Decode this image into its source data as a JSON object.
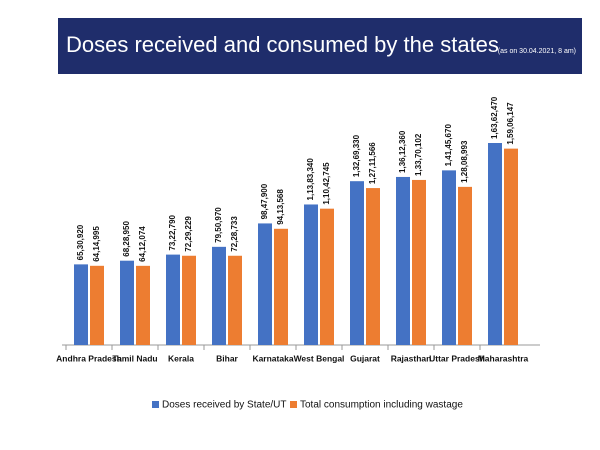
{
  "chart_data": {
    "type": "bar",
    "title": "Doses received and consumed by the states",
    "subtitle": "(as on 30.04.2021, 8 am)",
    "categories": [
      "Andhra Pradesh",
      "Tamil Nadu",
      "Kerala",
      "Bihar",
      "Karnataka",
      "West Bengal",
      "Gujarat",
      "Rajasthan",
      "Uttar Pradesh",
      "Maharashtra"
    ],
    "series": [
      {
        "name": "Doses received by State/UT",
        "color": "#4472c4",
        "values": [
          6530920,
          6828950,
          7322790,
          7950970,
          9847900,
          11383340,
          13269330,
          13612360,
          14145670,
          16362470
        ],
        "value_labels": [
          "65,30,920",
          "68,28,950",
          "73,22,790",
          "79,50,970",
          "98,47,900",
          "1,13,83,340",
          "1,32,69,330",
          "1,36,12,360",
          "1,41,45,670",
          "1,63,62,470"
        ]
      },
      {
        "name": "Total consumption including wastage",
        "color": "#ed7d31",
        "values": [
          6414995,
          6412074,
          7229229,
          7228733,
          9413568,
          11042745,
          12711566,
          13370102,
          12808993,
          15906147
        ],
        "value_labels": [
          "64,14,995",
          "64,12,074",
          "72,29,229",
          "72,28,733",
          "94,13,568",
          "1,10,42,745",
          "1,27,11,566",
          "1,33,70,102",
          "1,28,08,993",
          "1,59,06,147"
        ]
      }
    ],
    "legend": "bottom"
  }
}
